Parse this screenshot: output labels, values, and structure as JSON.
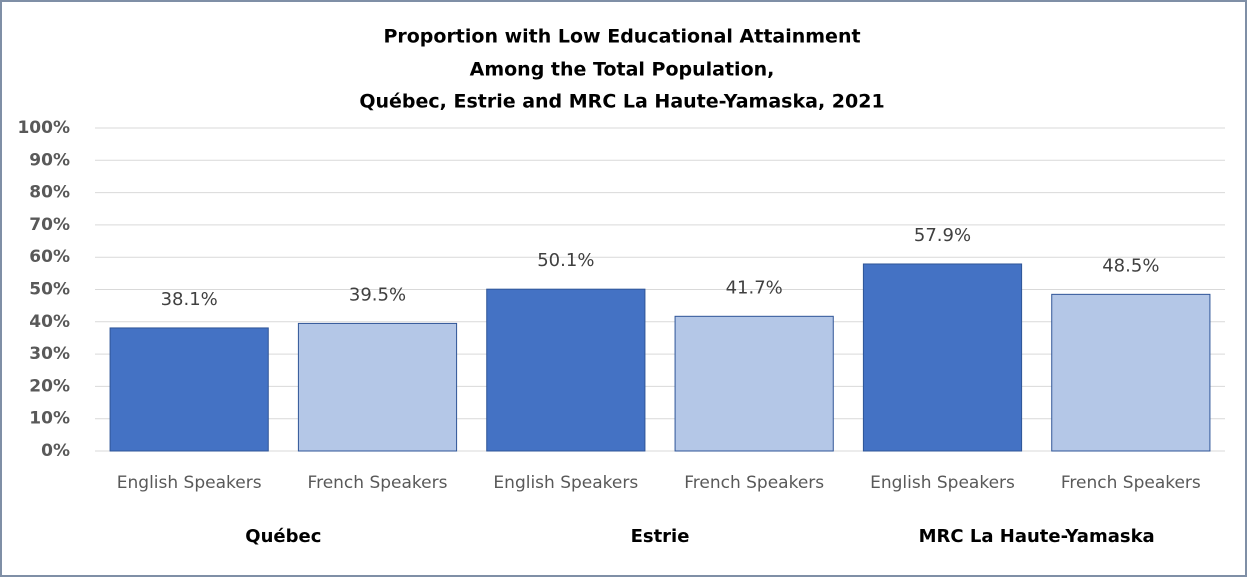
{
  "chart_data": {
    "type": "bar",
    "title": [
      "Proportion with Low Educational  Attainment",
      "Among the Total Population,",
      "Québec, Estrie and MRC La Haute-Yamaska,  2021"
    ],
    "categories": [
      "English Speakers",
      "French Speakers",
      "English Speakers",
      "French Speakers",
      "English Speakers",
      "French Speakers"
    ],
    "groups": [
      "Québec",
      "Estrie",
      "MRC La Haute-Yamaska"
    ],
    "values": [
      38.1,
      39.5,
      50.1,
      41.7,
      57.9,
      48.5
    ],
    "value_labels": [
      "38.1%",
      "39.5%",
      "50.1%",
      "41.7%",
      "57.9%",
      "48.5%"
    ],
    "colors": [
      "#4472c4",
      "#b4c7e7",
      "#4472c4",
      "#b4c7e7",
      "#4472c4",
      "#b4c7e7"
    ],
    "ylim": [
      0,
      100
    ],
    "yticks": [
      {
        "value": 0,
        "label": "0%"
      },
      {
        "value": 10,
        "label": "10%"
      },
      {
        "value": 20,
        "label": "20%"
      },
      {
        "value": 30,
        "label": "30%"
      },
      {
        "value": 40,
        "label": "40%"
      },
      {
        "value": 50,
        "label": "50%"
      },
      {
        "value": 60,
        "label": "60%"
      },
      {
        "value": 70,
        "label": "70%"
      },
      {
        "value": 80,
        "label": "80%"
      },
      {
        "value": 90,
        "label": "90%"
      },
      {
        "value": 100,
        "label": "100%"
      }
    ],
    "grid": true
  }
}
